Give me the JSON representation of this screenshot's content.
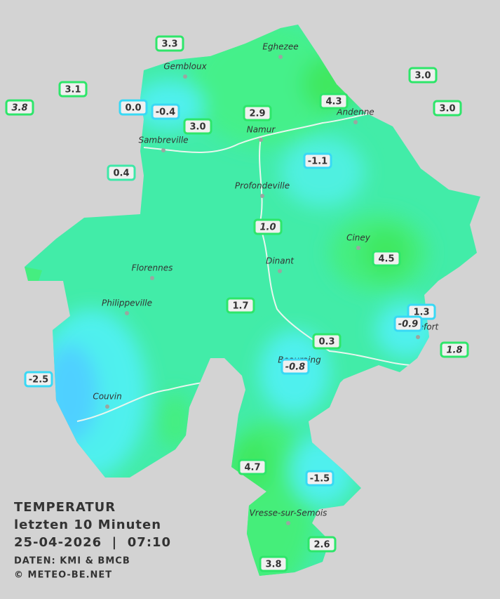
{
  "legend": {
    "title": "TEMPERATUR",
    "subtitle": "letzten 10 Minuten",
    "timestamp": "25-04-2026  |  07:10",
    "source": "DATEN: KMI & BMCB",
    "credit": "© METEO-BE.NET"
  },
  "towns": [
    "Eghezee",
    "Gembloux",
    "Andenne",
    "Namur",
    "Sambreville",
    "Profondeville",
    "Ciney",
    "Dinant",
    "Florennes",
    "Philippeville",
    "Rochefort",
    "Beauraing",
    "Couvin",
    "Vresse-sur-Semois"
  ],
  "stations": [
    {
      "label": "3.3",
      "border_color": "#2ee66a",
      "italic": false
    },
    {
      "label": "3.1",
      "border_color": "#2ee66a",
      "italic": false
    },
    {
      "label": "3.8",
      "border_color": "#2ee66a",
      "italic": true
    },
    {
      "label": "0.0",
      "border_color": "#38d9f5",
      "italic": false
    },
    {
      "label": "-0.4",
      "border_color": "#38d9f5",
      "italic": false
    },
    {
      "label": "3.0",
      "border_color": "#2ee66a",
      "italic": false
    },
    {
      "label": "2.9",
      "border_color": "#2ee66a",
      "italic": false
    },
    {
      "label": "4.3",
      "border_color": "#2ee66a",
      "italic": false
    },
    {
      "label": "3.0",
      "border_color": "#2ee66a",
      "italic": false
    },
    {
      "label": "3.0",
      "border_color": "#2ee66a",
      "italic": false
    },
    {
      "label": "0.4",
      "border_color": "#3ee8a8",
      "italic": false
    },
    {
      "label": "-1.1",
      "border_color": "#38d9f5",
      "italic": false
    },
    {
      "label": "1.0",
      "border_color": "#2ee66a",
      "italic": true
    },
    {
      "label": "4.5",
      "border_color": "#2ee66a",
      "italic": false
    },
    {
      "label": "1.7",
      "border_color": "#2ee66a",
      "italic": false
    },
    {
      "label": "1.3",
      "border_color": "#38d9f5",
      "italic": false
    },
    {
      "label": "-0.9",
      "border_color": "#38d9f5",
      "italic": true
    },
    {
      "label": "1.8",
      "border_color": "#2ee66a",
      "italic": true
    },
    {
      "label": "0.3",
      "border_color": "#2ee66a",
      "italic": false
    },
    {
      "label": "-0.8",
      "border_color": "#38d9f5",
      "italic": true
    },
    {
      "label": "-2.5",
      "border_color": "#38d9f5",
      "italic": false
    },
    {
      "label": "4.7",
      "border_color": "#2ee66a",
      "italic": false
    },
    {
      "label": "-1.5",
      "border_color": "#38d9f5",
      "italic": false
    },
    {
      "label": "2.6",
      "border_color": "#2ee66a",
      "italic": false
    },
    {
      "label": "3.8",
      "border_color": "#2ee66a",
      "italic": false
    }
  ]
}
